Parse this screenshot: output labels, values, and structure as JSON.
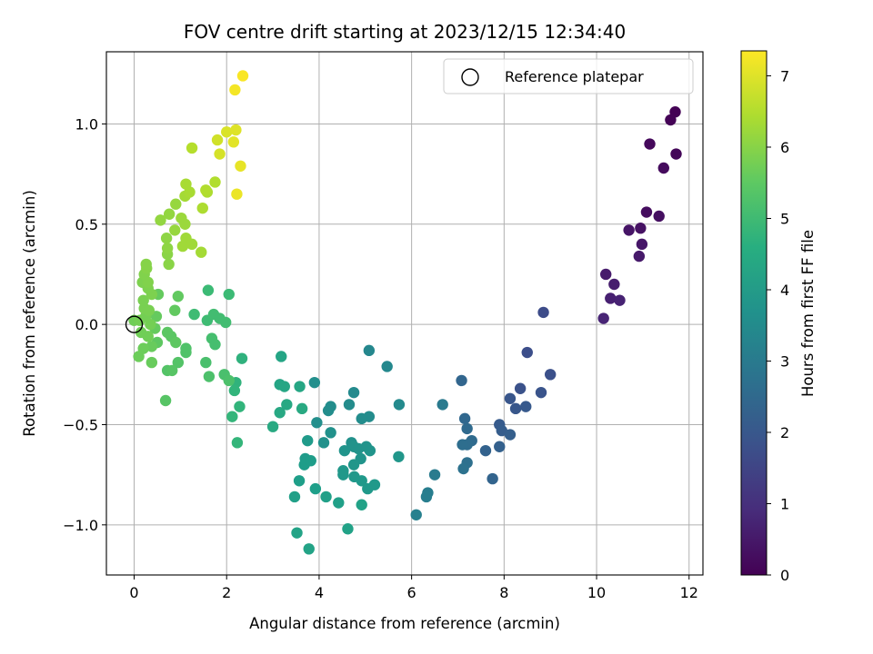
{
  "chart_data": {
    "type": "scatter",
    "title": "FOV centre drift starting at 2023/12/15 12:34:40",
    "xlabel": "Angular distance from reference (arcmin)",
    "ylabel": "Rotation from reference (arcmin)",
    "xlim": [
      -0.6,
      12.3
    ],
    "ylim": [
      -1.25,
      1.36
    ],
    "x_ticks": [
      0,
      2,
      4,
      6,
      8,
      10,
      12
    ],
    "y_ticks": [
      -1.0,
      -0.5,
      0.0,
      0.5,
      1.0
    ],
    "x_tick_labels": [
      "0",
      "2",
      "4",
      "6",
      "8",
      "10",
      "12"
    ],
    "y_tick_labels": [
      "−1.0",
      "−0.5",
      "0.0",
      "0.5",
      "1.0"
    ],
    "grid": true,
    "legend": {
      "placement": "top-right",
      "entries": [
        {
          "label": "Reference platepar",
          "marker": "open-circle"
        }
      ]
    },
    "reference_point": {
      "x": 0.0,
      "y": 0.0
    },
    "colorbar": {
      "label": "Hours from first FF file",
      "colormap": "viridis",
      "range": [
        0,
        7.35
      ],
      "ticks": [
        0,
        1,
        2,
        3,
        4,
        5,
        6,
        7
      ],
      "tick_labels": [
        "0",
        "1",
        "2",
        "3",
        "4",
        "5",
        "6",
        "7"
      ]
    },
    "points": [
      {
        "x": 11.7,
        "y": 1.06,
        "c": 0.02
      },
      {
        "x": 11.6,
        "y": 1.02,
        "c": 0.05
      },
      {
        "x": 11.72,
        "y": 0.85,
        "c": 0.1
      },
      {
        "x": 11.15,
        "y": 0.9,
        "c": 0.15
      },
      {
        "x": 11.45,
        "y": 0.78,
        "c": 0.2
      },
      {
        "x": 11.08,
        "y": 0.56,
        "c": 0.25
      },
      {
        "x": 11.35,
        "y": 0.54,
        "c": 0.3
      },
      {
        "x": 10.95,
        "y": 0.48,
        "c": 0.35
      },
      {
        "x": 10.7,
        "y": 0.47,
        "c": 0.4
      },
      {
        "x": 10.98,
        "y": 0.4,
        "c": 0.45
      },
      {
        "x": 10.92,
        "y": 0.34,
        "c": 0.5
      },
      {
        "x": 10.2,
        "y": 0.25,
        "c": 0.55
      },
      {
        "x": 10.38,
        "y": 0.2,
        "c": 0.6
      },
      {
        "x": 10.3,
        "y": 0.13,
        "c": 0.65
      },
      {
        "x": 10.5,
        "y": 0.12,
        "c": 0.7
      },
      {
        "x": 10.15,
        "y": 0.03,
        "c": 0.75
      },
      {
        "x": 8.85,
        "y": 0.06,
        "c": 1.7
      },
      {
        "x": 8.5,
        "y": -0.14,
        "c": 1.75
      },
      {
        "x": 9.0,
        "y": -0.25,
        "c": 1.8
      },
      {
        "x": 8.35,
        "y": -0.32,
        "c": 1.85
      },
      {
        "x": 8.8,
        "y": -0.34,
        "c": 1.9
      },
      {
        "x": 8.13,
        "y": -0.37,
        "c": 1.95
      },
      {
        "x": 8.25,
        "y": -0.42,
        "c": 2.0
      },
      {
        "x": 8.47,
        "y": -0.41,
        "c": 2.05
      },
      {
        "x": 7.9,
        "y": -0.5,
        "c": 2.1
      },
      {
        "x": 7.95,
        "y": -0.53,
        "c": 2.15
      },
      {
        "x": 8.13,
        "y": -0.55,
        "c": 2.2
      },
      {
        "x": 7.9,
        "y": -0.61,
        "c": 2.25
      },
      {
        "x": 7.6,
        "y": -0.63,
        "c": 2.3
      },
      {
        "x": 7.75,
        "y": -0.77,
        "c": 2.35
      },
      {
        "x": 7.08,
        "y": -0.28,
        "c": 2.4
      },
      {
        "x": 7.15,
        "y": -0.47,
        "c": 2.45
      },
      {
        "x": 7.2,
        "y": -0.52,
        "c": 2.5
      },
      {
        "x": 7.3,
        "y": -0.58,
        "c": 2.55
      },
      {
        "x": 7.2,
        "y": -0.6,
        "c": 2.6
      },
      {
        "x": 7.1,
        "y": -0.6,
        "c": 2.65
      },
      {
        "x": 7.2,
        "y": -0.69,
        "c": 2.7
      },
      {
        "x": 7.12,
        "y": -0.72,
        "c": 2.75
      },
      {
        "x": 6.67,
        "y": -0.4,
        "c": 3.0
      },
      {
        "x": 6.5,
        "y": -0.75,
        "c": 3.05
      },
      {
        "x": 6.35,
        "y": -0.84,
        "c": 3.1
      },
      {
        "x": 6.32,
        "y": -0.86,
        "c": 3.15
      },
      {
        "x": 6.1,
        "y": -0.95,
        "c": 3.2
      },
      {
        "x": 5.08,
        "y": -0.13,
        "c": 3.4
      },
      {
        "x": 5.47,
        "y": -0.21,
        "c": 3.45
      },
      {
        "x": 5.73,
        "y": -0.4,
        "c": 3.5
      },
      {
        "x": 4.75,
        "y": -0.34,
        "c": 3.5
      },
      {
        "x": 4.65,
        "y": -0.4,
        "c": 3.55
      },
      {
        "x": 5.08,
        "y": -0.46,
        "c": 3.55
      },
      {
        "x": 4.92,
        "y": -0.47,
        "c": 3.6
      },
      {
        "x": 4.25,
        "y": -0.41,
        "c": 3.6
      },
      {
        "x": 4.2,
        "y": -0.43,
        "c": 3.6
      },
      {
        "x": 3.9,
        "y": -0.29,
        "c": 3.65
      },
      {
        "x": 3.95,
        "y": -0.49,
        "c": 3.65
      },
      {
        "x": 4.25,
        "y": -0.54,
        "c": 3.7
      },
      {
        "x": 4.1,
        "y": -0.59,
        "c": 3.7
      },
      {
        "x": 4.7,
        "y": -0.59,
        "c": 3.7
      },
      {
        "x": 4.75,
        "y": -0.61,
        "c": 3.75
      },
      {
        "x": 4.85,
        "y": -0.62,
        "c": 3.75
      },
      {
        "x": 5.02,
        "y": -0.61,
        "c": 3.75
      },
      {
        "x": 5.1,
        "y": -0.63,
        "c": 3.8
      },
      {
        "x": 4.55,
        "y": -0.63,
        "c": 3.8
      },
      {
        "x": 4.9,
        "y": -0.67,
        "c": 3.8
      },
      {
        "x": 5.72,
        "y": -0.66,
        "c": 3.85
      },
      {
        "x": 4.75,
        "y": -0.7,
        "c": 3.85
      },
      {
        "x": 4.52,
        "y": -0.73,
        "c": 3.9
      },
      {
        "x": 4.52,
        "y": -0.75,
        "c": 3.9
      },
      {
        "x": 4.76,
        "y": -0.76,
        "c": 3.9
      },
      {
        "x": 4.92,
        "y": -0.78,
        "c": 3.95
      },
      {
        "x": 5.2,
        "y": -0.8,
        "c": 3.95
      },
      {
        "x": 5.05,
        "y": -0.82,
        "c": 3.95
      },
      {
        "x": 3.75,
        "y": -0.58,
        "c": 4.0
      },
      {
        "x": 3.7,
        "y": -0.67,
        "c": 4.0
      },
      {
        "x": 3.68,
        "y": -0.7,
        "c": 4.05
      },
      {
        "x": 3.82,
        "y": -0.68,
        "c": 4.05
      },
      {
        "x": 3.92,
        "y": -0.82,
        "c": 4.1
      },
      {
        "x": 3.57,
        "y": -0.78,
        "c": 4.1
      },
      {
        "x": 3.47,
        "y": -0.86,
        "c": 4.15
      },
      {
        "x": 4.15,
        "y": -0.86,
        "c": 4.15
      },
      {
        "x": 4.42,
        "y": -0.89,
        "c": 4.15
      },
      {
        "x": 4.92,
        "y": -0.9,
        "c": 4.2
      },
      {
        "x": 4.62,
        "y": -1.02,
        "c": 4.2
      },
      {
        "x": 3.52,
        "y": -1.04,
        "c": 4.25
      },
      {
        "x": 3.78,
        "y": -1.12,
        "c": 4.25
      },
      {
        "x": 3.18,
        "y": -0.16,
        "c": 4.3
      },
      {
        "x": 3.15,
        "y": -0.3,
        "c": 4.3
      },
      {
        "x": 3.25,
        "y": -0.31,
        "c": 4.35
      },
      {
        "x": 3.58,
        "y": -0.31,
        "c": 4.35
      },
      {
        "x": 3.3,
        "y": -0.4,
        "c": 4.4
      },
      {
        "x": 3.15,
        "y": -0.44,
        "c": 4.4
      },
      {
        "x": 3.63,
        "y": -0.42,
        "c": 4.45
      },
      {
        "x": 3.0,
        "y": -0.51,
        "c": 4.45
      },
      {
        "x": 2.33,
        "y": -0.17,
        "c": 4.7
      },
      {
        "x": 2.2,
        "y": -0.29,
        "c": 4.75
      },
      {
        "x": 2.17,
        "y": -0.33,
        "c": 4.8
      },
      {
        "x": 2.28,
        "y": -0.41,
        "c": 4.8
      },
      {
        "x": 2.12,
        "y": -0.46,
        "c": 4.85
      },
      {
        "x": 2.23,
        "y": -0.59,
        "c": 4.85
      },
      {
        "x": 2.05,
        "y": 0.15,
        "c": 5.0
      },
      {
        "x": 1.6,
        "y": 0.17,
        "c": 5.0
      },
      {
        "x": 1.3,
        "y": 0.05,
        "c": 5.05
      },
      {
        "x": 1.58,
        "y": 0.02,
        "c": 5.05
      },
      {
        "x": 1.72,
        "y": 0.05,
        "c": 5.1
      },
      {
        "x": 1.85,
        "y": 0.03,
        "c": 5.1
      },
      {
        "x": 1.98,
        "y": 0.01,
        "c": 5.1
      },
      {
        "x": 1.68,
        "y": -0.07,
        "c": 5.15
      },
      {
        "x": 1.75,
        "y": -0.1,
        "c": 5.15
      },
      {
        "x": 1.55,
        "y": -0.19,
        "c": 5.2
      },
      {
        "x": 1.95,
        "y": -0.25,
        "c": 5.2
      },
      {
        "x": 2.05,
        "y": -0.28,
        "c": 5.25
      },
      {
        "x": 1.62,
        "y": -0.26,
        "c": 5.25
      },
      {
        "x": 1.12,
        "y": -0.12,
        "c": 5.3
      },
      {
        "x": 1.12,
        "y": -0.14,
        "c": 5.3
      },
      {
        "x": 0.95,
        "y": -0.19,
        "c": 5.35
      },
      {
        "x": 0.72,
        "y": -0.23,
        "c": 5.35
      },
      {
        "x": 0.82,
        "y": -0.23,
        "c": 5.4
      },
      {
        "x": 0.68,
        "y": -0.38,
        "c": 5.4
      },
      {
        "x": 0.72,
        "y": -0.04,
        "c": 5.45
      },
      {
        "x": 0.8,
        "y": -0.06,
        "c": 5.45
      },
      {
        "x": 0.9,
        "y": -0.09,
        "c": 5.5
      },
      {
        "x": 0.5,
        "y": -0.09,
        "c": 5.5
      },
      {
        "x": 0.88,
        "y": 0.07,
        "c": 5.55
      },
      {
        "x": 0.95,
        "y": 0.14,
        "c": 5.55
      },
      {
        "x": 0.52,
        "y": 0.15,
        "c": 5.6
      },
      {
        "x": 0.48,
        "y": 0.04,
        "c": 5.6
      },
      {
        "x": 0.45,
        "y": -0.02,
        "c": 5.6
      },
      {
        "x": 0.38,
        "y": -0.11,
        "c": 5.65
      },
      {
        "x": 0.38,
        "y": -0.19,
        "c": 5.65
      },
      {
        "x": 0.2,
        "y": -0.12,
        "c": 5.7
      },
      {
        "x": 0.1,
        "y": -0.16,
        "c": 5.7
      },
      {
        "x": 0.3,
        "y": -0.06,
        "c": 5.75
      },
      {
        "x": 0.15,
        "y": -0.04,
        "c": 5.75
      },
      {
        "x": 0.0,
        "y": 0.02,
        "c": 5.75
      },
      {
        "x": 0.12,
        "y": 0.02,
        "c": 5.8
      },
      {
        "x": 0.25,
        "y": 0.04,
        "c": 5.8
      },
      {
        "x": 0.35,
        "y": 0.0,
        "c": 5.8
      },
      {
        "x": 0.22,
        "y": 0.08,
        "c": 5.85
      },
      {
        "x": 0.32,
        "y": 0.07,
        "c": 5.85
      },
      {
        "x": 0.2,
        "y": 0.12,
        "c": 5.85
      },
      {
        "x": 0.38,
        "y": 0.15,
        "c": 5.9
      },
      {
        "x": 0.3,
        "y": 0.18,
        "c": 5.9
      },
      {
        "x": 0.18,
        "y": 0.21,
        "c": 5.9
      },
      {
        "x": 0.3,
        "y": 0.21,
        "c": 5.95
      },
      {
        "x": 0.22,
        "y": 0.25,
        "c": 5.95
      },
      {
        "x": 0.27,
        "y": 0.28,
        "c": 6.0
      },
      {
        "x": 0.26,
        "y": 0.3,
        "c": 6.0
      },
      {
        "x": 0.72,
        "y": 0.35,
        "c": 6.05
      },
      {
        "x": 0.75,
        "y": 0.3,
        "c": 6.05
      },
      {
        "x": 0.72,
        "y": 0.38,
        "c": 6.1
      },
      {
        "x": 0.7,
        "y": 0.43,
        "c": 6.1
      },
      {
        "x": 0.57,
        "y": 0.52,
        "c": 6.15
      },
      {
        "x": 0.76,
        "y": 0.55,
        "c": 6.15
      },
      {
        "x": 0.88,
        "y": 0.47,
        "c": 6.2
      },
      {
        "x": 0.9,
        "y": 0.6,
        "c": 6.2
      },
      {
        "x": 1.02,
        "y": 0.53,
        "c": 6.25
      },
      {
        "x": 1.1,
        "y": 0.5,
        "c": 6.25
      },
      {
        "x": 1.12,
        "y": 0.43,
        "c": 6.3
      },
      {
        "x": 1.05,
        "y": 0.39,
        "c": 6.3
      },
      {
        "x": 1.25,
        "y": 0.4,
        "c": 6.3
      },
      {
        "x": 1.45,
        "y": 0.36,
        "c": 6.35
      },
      {
        "x": 1.1,
        "y": 0.64,
        "c": 6.35
      },
      {
        "x": 1.2,
        "y": 0.66,
        "c": 6.4
      },
      {
        "x": 1.12,
        "y": 0.7,
        "c": 6.4
      },
      {
        "x": 1.48,
        "y": 0.58,
        "c": 6.45
      },
      {
        "x": 1.58,
        "y": 0.66,
        "c": 6.45
      },
      {
        "x": 1.55,
        "y": 0.67,
        "c": 6.5
      },
      {
        "x": 1.75,
        "y": 0.71,
        "c": 6.5
      },
      {
        "x": 1.25,
        "y": 0.88,
        "c": 6.55
      },
      {
        "x": 1.8,
        "y": 0.92,
        "c": 6.85
      },
      {
        "x": 1.85,
        "y": 0.85,
        "c": 6.9
      },
      {
        "x": 2.0,
        "y": 0.96,
        "c": 6.95
      },
      {
        "x": 2.2,
        "y": 0.97,
        "c": 7.0
      },
      {
        "x": 2.15,
        "y": 0.91,
        "c": 7.05
      },
      {
        "x": 2.3,
        "y": 0.79,
        "c": 7.1
      },
      {
        "x": 2.22,
        "y": 0.65,
        "c": 7.15
      },
      {
        "x": 2.18,
        "y": 1.17,
        "c": 7.25
      },
      {
        "x": 2.35,
        "y": 1.24,
        "c": 7.3
      }
    ]
  }
}
